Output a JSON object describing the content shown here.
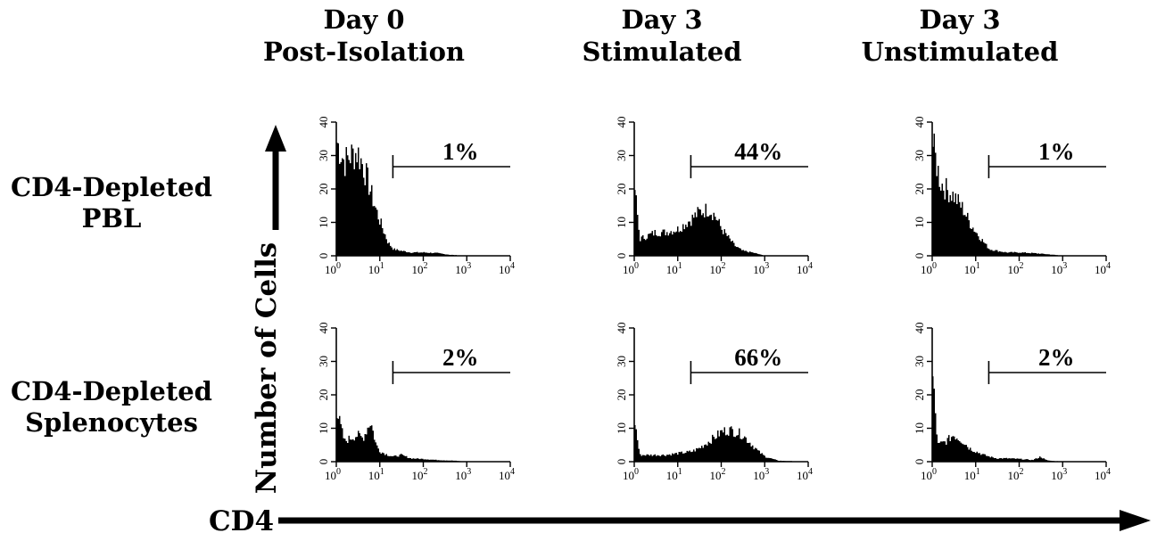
{
  "columns": [
    {
      "line1": "Day 0",
      "line2": "Post-Isolation"
    },
    {
      "line1": "Day 3",
      "line2": "Stimulated"
    },
    {
      "line1": "Day 3",
      "line2": "Unstimulated"
    }
  ],
  "rows": [
    {
      "line1": "CD4-Depleted",
      "line2": "PBL"
    },
    {
      "line1": "CD4-Depleted",
      "line2": "Splenocytes"
    }
  ],
  "y_axis_label": "Number of Cells",
  "x_axis_label": "CD4",
  "chart_data": [
    {
      "type": "area",
      "row": "CD4-Depleted PBL",
      "column": "Day 0 Post-Isolation",
      "x_scale": "log",
      "xlim": [
        1,
        10000
      ],
      "ylim": [
        0,
        40
      ],
      "x_ticks": [
        "10^0",
        "10^1",
        "10^2",
        "10^3",
        "10^4"
      ],
      "y_ticks": [
        0,
        10,
        20,
        30,
        40
      ],
      "x": [
        1,
        1.5,
        2,
        3,
        4,
        5,
        7,
        10,
        15,
        20,
        30,
        50,
        100,
        200,
        400,
        1000,
        10000
      ],
      "y": [
        34,
        28,
        30,
        31,
        27,
        23,
        16,
        10,
        4,
        2,
        1.5,
        1,
        1,
        0.8,
        0.3,
        0,
        0
      ],
      "gate_start": 20,
      "gate_label": "1%"
    },
    {
      "type": "area",
      "row": "CD4-Depleted PBL",
      "column": "Day 3 Stimulated",
      "x_scale": "log",
      "xlim": [
        1,
        10000
      ],
      "ylim": [
        0,
        40
      ],
      "x_ticks": [
        "10^0",
        "10^1",
        "10^2",
        "10^3",
        "10^4"
      ],
      "y_ticks": [
        0,
        10,
        20,
        30,
        40
      ],
      "x": [
        1,
        1.3,
        2,
        3,
        5,
        10,
        20,
        30,
        50,
        70,
        100,
        150,
        200,
        300,
        500,
        1000,
        10000
      ],
      "y": [
        20,
        5,
        6,
        7,
        7,
        8,
        11,
        13,
        14,
        12,
        8,
        5,
        3,
        1.5,
        1,
        0,
        0
      ],
      "gate_start": 20,
      "gate_label": "44%"
    },
    {
      "type": "area",
      "row": "CD4-Depleted PBL",
      "column": "Day 3 Unstimulated",
      "x_scale": "log",
      "xlim": [
        1,
        10000
      ],
      "ylim": [
        0,
        40
      ],
      "x_ticks": [
        "10^0",
        "10^1",
        "10^2",
        "10^3",
        "10^4"
      ],
      "y_ticks": [
        0,
        10,
        20,
        30,
        40
      ],
      "x": [
        1,
        1.5,
        2,
        3,
        5,
        7,
        10,
        15,
        20,
        30,
        50,
        100,
        200,
        500,
        1000,
        10000
      ],
      "y": [
        33,
        22,
        20,
        18,
        14,
        10,
        7,
        4,
        2,
        1.5,
        1,
        1,
        0.8,
        0.4,
        0,
        0
      ],
      "gate_start": 20,
      "gate_label": "1%"
    },
    {
      "type": "area",
      "row": "CD4-Depleted Splenocytes",
      "column": "Day 0 Post-Isolation",
      "x_scale": "log",
      "xlim": [
        1,
        10000
      ],
      "ylim": [
        0,
        40
      ],
      "x_ticks": [
        "10^0",
        "10^1",
        "10^2",
        "10^3",
        "10^4"
      ],
      "y_ticks": [
        0,
        10,
        20,
        30,
        40
      ],
      "x": [
        1,
        1.5,
        2,
        3,
        4,
        5,
        6,
        8,
        10,
        15,
        20,
        30,
        50,
        100,
        200,
        500,
        1000,
        10000
      ],
      "y": [
        15,
        6,
        7,
        8,
        7,
        10,
        12,
        5,
        3,
        2,
        1.5,
        2,
        1,
        0.8,
        0.5,
        0.3,
        0,
        0
      ],
      "gate_start": 20,
      "gate_label": "2%"
    },
    {
      "type": "area",
      "row": "CD4-Depleted Splenocytes",
      "column": "Day 3 Stimulated",
      "x_scale": "log",
      "xlim": [
        1,
        10000
      ],
      "ylim": [
        0,
        40
      ],
      "x_ticks": [
        "10^0",
        "10^1",
        "10^2",
        "10^3",
        "10^4"
      ],
      "y_ticks": [
        0,
        10,
        20,
        30,
        40
      ],
      "x": [
        1,
        1.3,
        2,
        5,
        10,
        20,
        30,
        50,
        80,
        100,
        150,
        200,
        300,
        500,
        700,
        1000,
        2000,
        10000
      ],
      "y": [
        12,
        2,
        2,
        2,
        2.5,
        3,
        4,
        6,
        8,
        9,
        9.5,
        9,
        8,
        5,
        3,
        1.5,
        0.3,
        0
      ],
      "gate_start": 20,
      "gate_label": "66%"
    },
    {
      "type": "area",
      "row": "CD4-Depleted Splenocytes",
      "column": "Day 3 Unstimulated",
      "x_scale": "log",
      "xlim": [
        1,
        10000
      ],
      "ylim": [
        0,
        40
      ],
      "x_ticks": [
        "10^0",
        "10^1",
        "10^2",
        "10^3",
        "10^4"
      ],
      "y_ticks": [
        0,
        10,
        20,
        30,
        40
      ],
      "x": [
        1,
        1.3,
        2,
        3,
        5,
        7,
        10,
        15,
        20,
        30,
        50,
        100,
        200,
        300,
        400,
        500,
        1000,
        10000
      ],
      "y": [
        25,
        5,
        6,
        8,
        6,
        4,
        3,
        2,
        1.5,
        1,
        1,
        0.8,
        0.5,
        1.5,
        0.5,
        0.3,
        0,
        0
      ],
      "gate_start": 20,
      "gate_label": "2%"
    }
  ]
}
